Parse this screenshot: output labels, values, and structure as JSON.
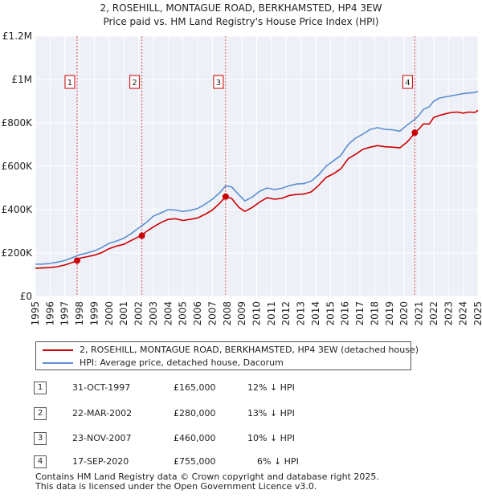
{
  "chart_data": {
    "type": "line",
    "title": "2, ROSEHILL, MONTAGUE ROAD, BERKHAMSTED, HP4 3EW",
    "subtitle": "Price paid vs. HM Land Registry's House Price Index (HPI)",
    "xlabel": "",
    "ylabel": "",
    "xlim": [
      1995,
      2025
    ],
    "ylim": [
      0,
      1200000
    ],
    "grid": true,
    "x_ticks": [
      1995,
      1996,
      1997,
      1998,
      1999,
      2000,
      2001,
      2002,
      2003,
      2004,
      2005,
      2006,
      2007,
      2008,
      2009,
      2010,
      2011,
      2012,
      2013,
      2014,
      2015,
      2016,
      2017,
      2018,
      2019,
      2020,
      2021,
      2022,
      2023,
      2024,
      2025
    ],
    "y_ticks": [
      {
        "value": 0,
        "label": "£0"
      },
      {
        "value": 200000,
        "label": "£200K"
      },
      {
        "value": 400000,
        "label": "£400K"
      },
      {
        "value": 600000,
        "label": "£600K"
      },
      {
        "value": 800000,
        "label": "£800K"
      },
      {
        "value": 1000000,
        "label": "£1M"
      },
      {
        "value": 1200000,
        "label": "£1.2M"
      }
    ],
    "series": [
      {
        "name": "2, ROSEHILL, MONTAGUE ROAD, BERKHAMSTED, HP4 3EW (detached house)",
        "color": "#cc0000",
        "x": [
          1995.0,
          1995.5,
          1996.0,
          1996.5,
          1997.0,
          1997.5,
          1997.83,
          1998.0,
          1998.5,
          1999.0,
          1999.5,
          2000.0,
          2000.5,
          2001.0,
          2001.5,
          2002.0,
          2002.22,
          2002.5,
          2003.0,
          2003.5,
          2004.0,
          2004.5,
          2005.0,
          2005.5,
          2006.0,
          2006.5,
          2007.0,
          2007.5,
          2007.9,
          2008.3,
          2008.8,
          2009.2,
          2009.7,
          2010.2,
          2010.7,
          2011.2,
          2011.7,
          2012.2,
          2012.7,
          2013.2,
          2013.7,
          2014.2,
          2014.7,
          2015.2,
          2015.7,
          2016.2,
          2016.7,
          2017.2,
          2017.7,
          2018.2,
          2018.7,
          2019.2,
          2019.7,
          2020.2,
          2020.5,
          2020.72,
          2021.0,
          2021.3,
          2021.7,
          2022.0,
          2022.4,
          2022.8,
          2023.2,
          2023.6,
          2024.0,
          2024.4,
          2024.8,
          2025.0
        ],
        "values": [
          130000,
          131000,
          133000,
          137000,
          145000,
          156000,
          165000,
          176000,
          183000,
          190000,
          202000,
          220000,
          232000,
          240000,
          258000,
          275000,
          280000,
          298000,
          320000,
          340000,
          355000,
          358000,
          350000,
          355000,
          362000,
          378000,
          398000,
          430000,
          460000,
          452000,
          410000,
          392000,
          410000,
          435000,
          455000,
          448000,
          452000,
          465000,
          470000,
          472000,
          482000,
          512000,
          548000,
          565000,
          588000,
          635000,
          655000,
          678000,
          688000,
          695000,
          690000,
          688000,
          685000,
          712000,
          735000,
          755000,
          772000,
          795000,
          795000,
          825000,
          835000,
          842000,
          848000,
          850000,
          845000,
          850000,
          848000,
          858000
        ]
      },
      {
        "name": "HPI: Average price, detached house, Dacorum",
        "color": "#5b8fd1",
        "x": [
          1995.0,
          1995.5,
          1996.0,
          1996.5,
          1997.0,
          1997.5,
          1998.0,
          1998.5,
          1999.0,
          1999.5,
          2000.0,
          2000.5,
          2001.0,
          2001.5,
          2002.0,
          2002.5,
          2003.0,
          2003.5,
          2004.0,
          2004.5,
          2005.0,
          2005.5,
          2006.0,
          2006.5,
          2007.0,
          2007.5,
          2007.9,
          2008.3,
          2008.8,
          2009.2,
          2009.7,
          2010.2,
          2010.7,
          2011.2,
          2011.7,
          2012.2,
          2012.7,
          2013.2,
          2013.7,
          2014.2,
          2014.7,
          2015.2,
          2015.7,
          2016.2,
          2016.7,
          2017.2,
          2017.7,
          2018.2,
          2018.7,
          2019.2,
          2019.7,
          2020.2,
          2020.7,
          2021.0,
          2021.3,
          2021.7,
          2022.0,
          2022.4,
          2022.8,
          2023.2,
          2023.6,
          2024.0,
          2024.4,
          2024.8,
          2025.0
        ],
        "values": [
          148000,
          149000,
          152000,
          158000,
          165000,
          178000,
          192000,
          200000,
          210000,
          225000,
          245000,
          255000,
          268000,
          290000,
          315000,
          340000,
          370000,
          385000,
          400000,
          398000,
          392000,
          397000,
          405000,
          425000,
          448000,
          478000,
          510000,
          505000,
          468000,
          440000,
          458000,
          485000,
          500000,
          493000,
          498000,
          510000,
          518000,
          520000,
          532000,
          560000,
          600000,
          625000,
          650000,
          700000,
          730000,
          748000,
          770000,
          778000,
          770000,
          768000,
          762000,
          790000,
          815000,
          835000,
          862000,
          875000,
          900000,
          915000,
          920000,
          925000,
          930000,
          935000,
          938000,
          940000,
          945000
        ]
      }
    ],
    "sales": [
      {
        "label": "1",
        "x": 1997.83,
        "value": 165000
      },
      {
        "label": "2",
        "x": 2002.22,
        "value": 280000
      },
      {
        "label": "3",
        "x": 2007.9,
        "value": 460000
      },
      {
        "label": "4",
        "x": 2020.72,
        "value": 755000
      }
    ]
  },
  "legend": {
    "property_label": "2, ROSEHILL, MONTAGUE ROAD, BERKHAMSTED, HP4 3EW (detached house)",
    "hpi_label": "HPI: Average price, detached house, Dacorum",
    "property_color": "#cc0000",
    "hpi_color": "#5b8fd1"
  },
  "sales_table": [
    {
      "num": "1",
      "date": "31-OCT-1997",
      "price": "£165,000",
      "hpi": "12% ↓ HPI"
    },
    {
      "num": "2",
      "date": "22-MAR-2002",
      "price": "£280,000",
      "hpi": "13% ↓ HPI"
    },
    {
      "num": "3",
      "date": "23-NOV-2007",
      "price": "£460,000",
      "hpi": "10% ↓ HPI"
    },
    {
      "num": "4",
      "date": "17-SEP-2020",
      "price": "£755,000",
      "hpi": "6% ↓ HPI"
    }
  ],
  "footer": {
    "line1": "Contains HM Land Registry data © Crown copyright and database right 2025.",
    "line2": "This data is licensed under the Open Government Licence v3.0."
  }
}
